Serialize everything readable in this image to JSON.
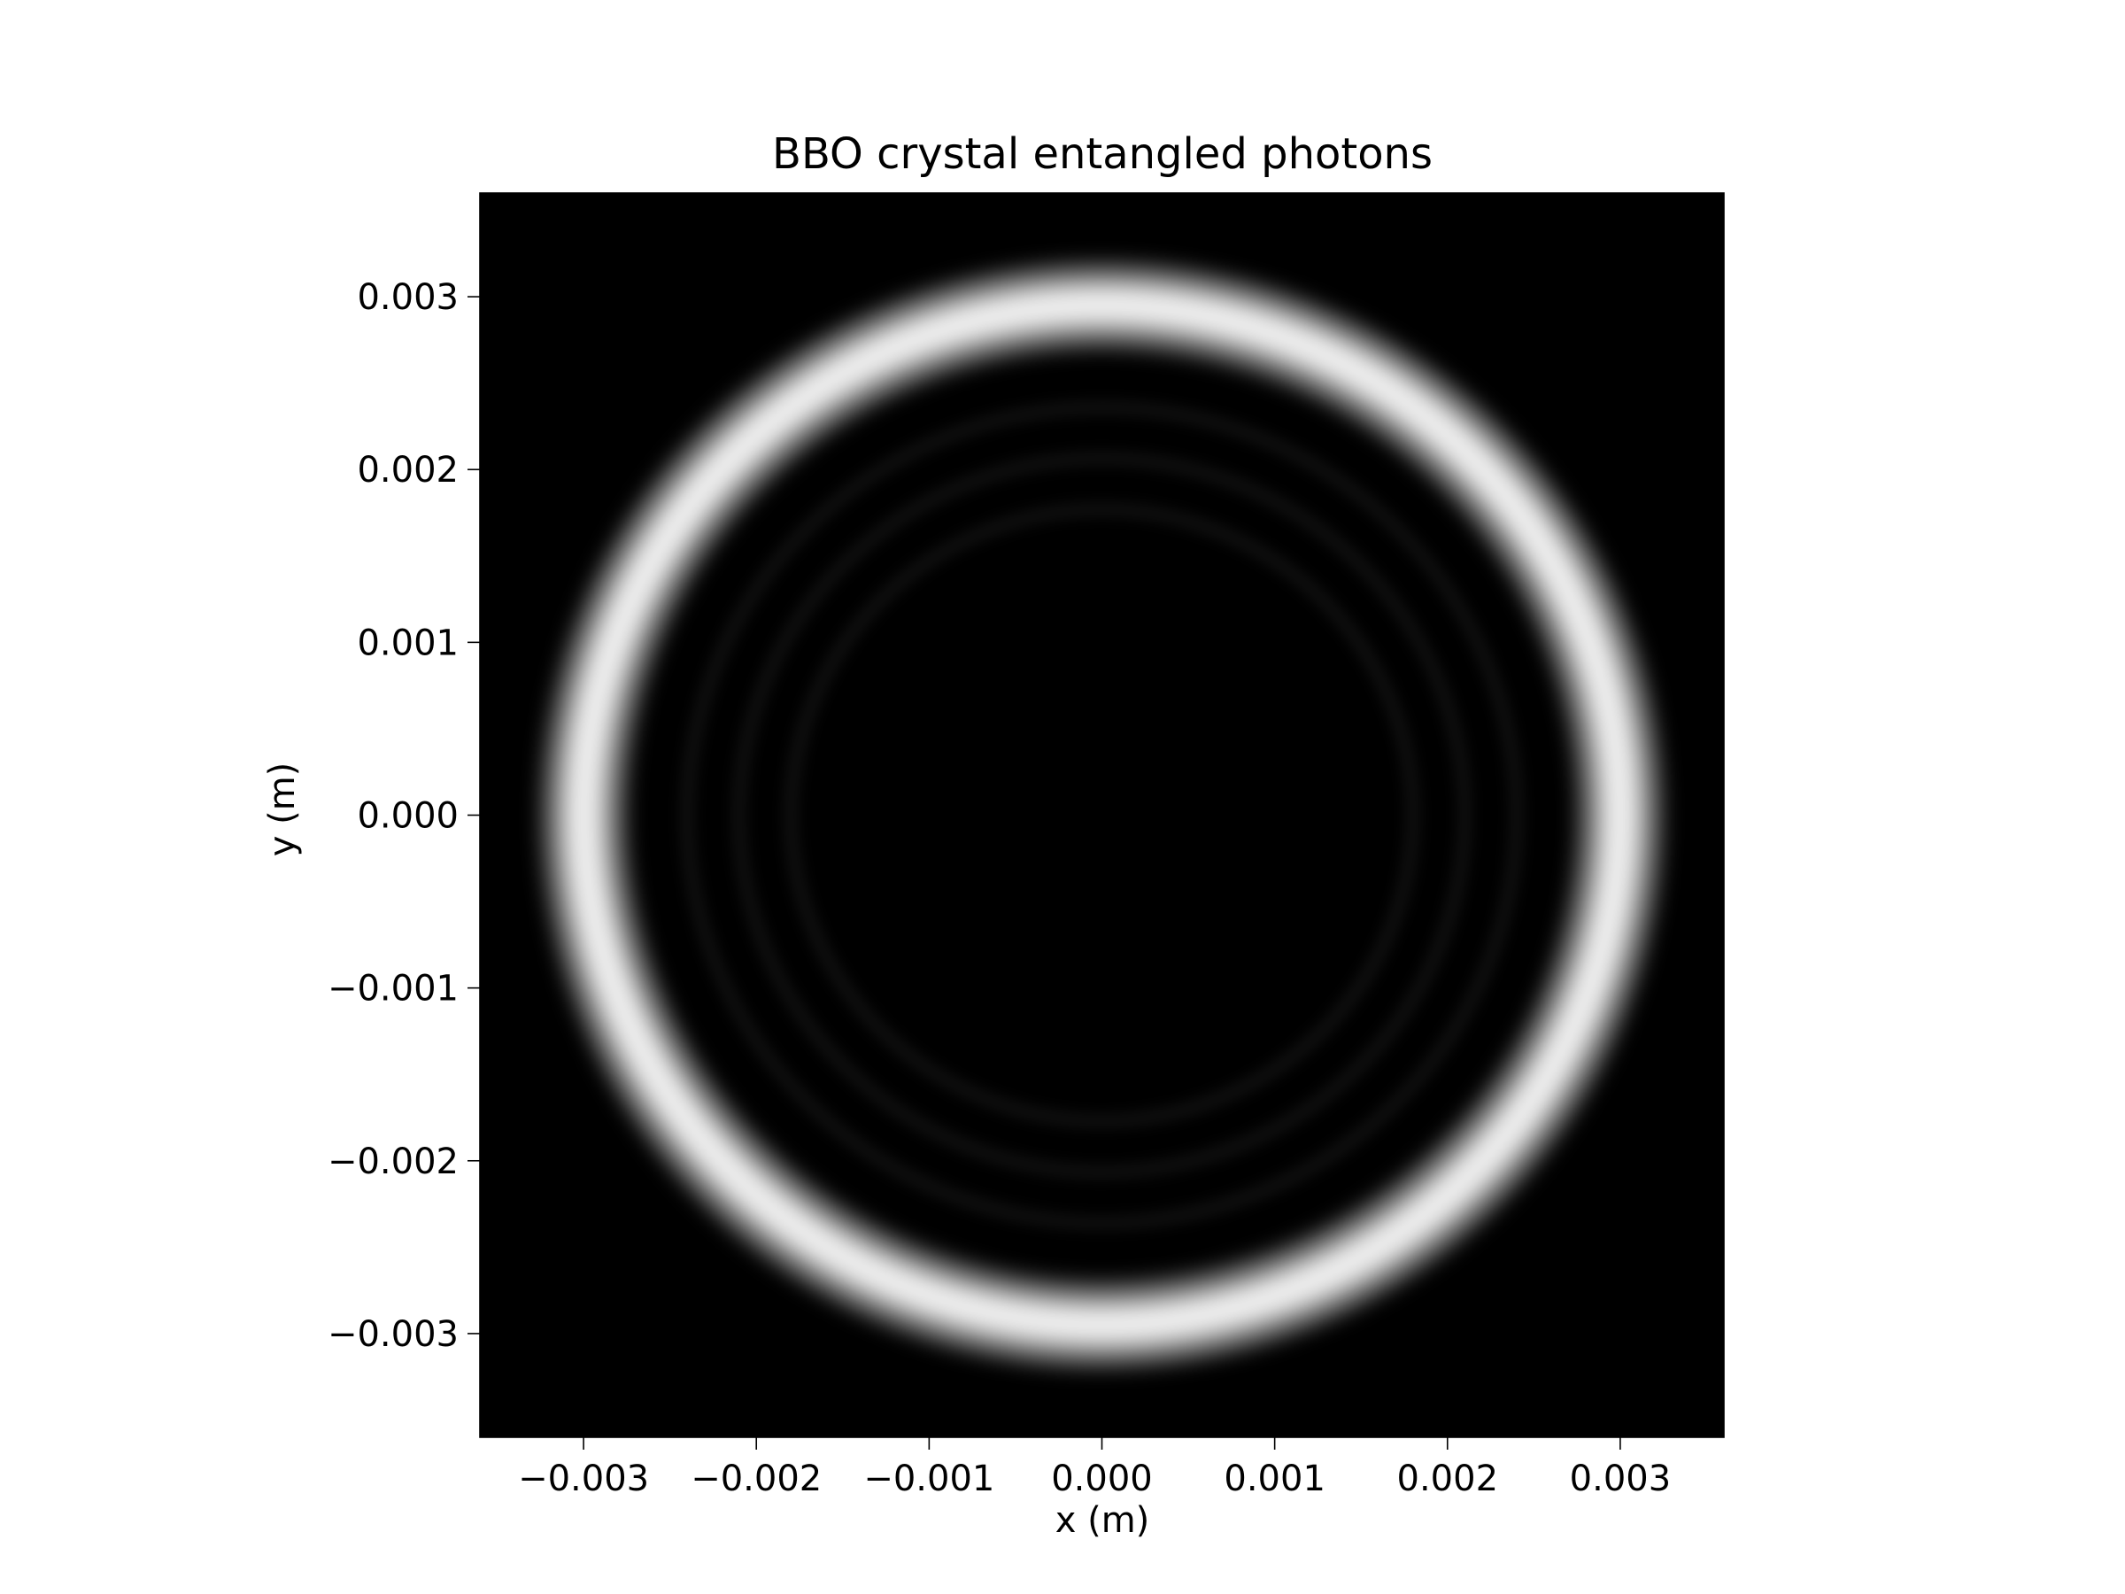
{
  "chart_data": {
    "type": "heatmap",
    "title": "BBO crystal entangled photons",
    "xlabel": "x (m)",
    "ylabel": "y (m)",
    "xlim": [
      -0.0036,
      0.0036
    ],
    "ylim": [
      -0.0036,
      0.0036
    ],
    "xticks": [
      -0.003,
      -0.002,
      -0.001,
      0.0,
      0.001,
      0.002,
      0.003
    ],
    "yticks": [
      -0.003,
      -0.002,
      -0.001,
      0.0,
      0.001,
      0.002,
      0.003
    ],
    "xtick_labels": [
      "−0.003",
      "−0.002",
      "−0.001",
      "0.000",
      "0.001",
      "0.002",
      "0.003"
    ],
    "ytick_labels": [
      "−0.003",
      "−0.002",
      "−0.001",
      "0.000",
      "0.001",
      "0.002",
      "0.003"
    ],
    "colormap": "gray",
    "background_color": "#000000",
    "ring_color": "#f2f2f2",
    "grid": false,
    "ring": {
      "center": [
        0.0,
        0.0
      ],
      "radius_x": 0.003,
      "radius_y": 0.00295,
      "width": 0.00025,
      "peak_intensity": 0.95,
      "faint_inner_rings": [
        0.0024,
        0.0021,
        0.0018
      ],
      "faint_inner_intensity": 0.07
    }
  }
}
